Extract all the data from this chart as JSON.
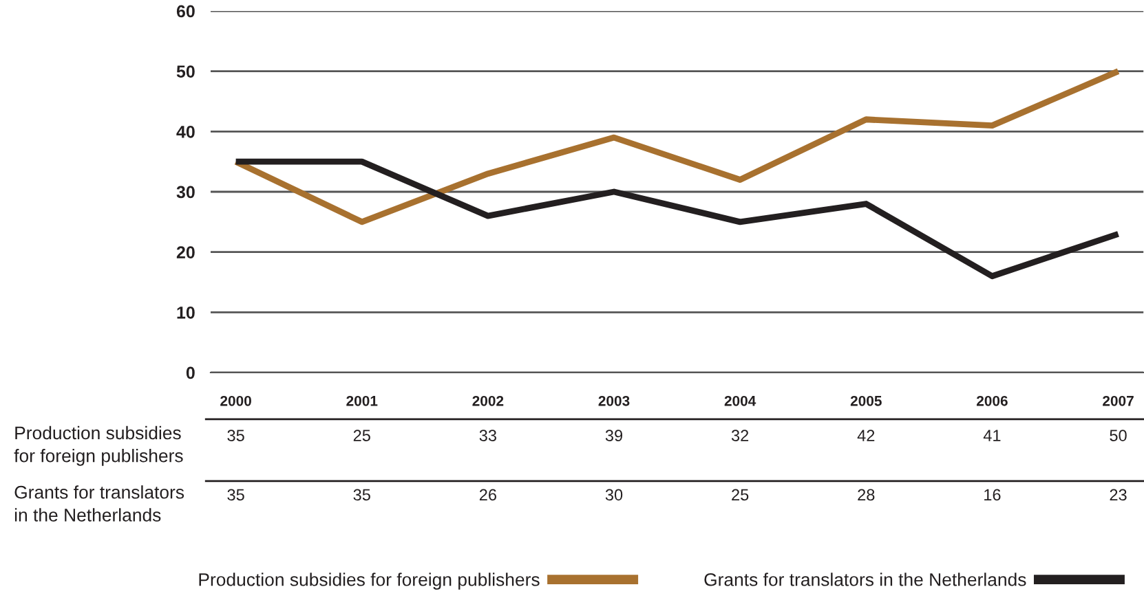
{
  "chart_data": {
    "type": "line",
    "categories": [
      "2000",
      "2001",
      "2002",
      "2003",
      "2004",
      "2005",
      "2006",
      "2007"
    ],
    "series": [
      {
        "name": "Production subsidies for foreign publishers",
        "color": "#a8712f",
        "values": [
          35,
          25,
          33,
          39,
          32,
          42,
          41,
          50
        ]
      },
      {
        "name": "Grants for translators in the Netherlands",
        "color": "#231f20",
        "values": [
          35,
          35,
          26,
          30,
          25,
          28,
          16,
          23
        ]
      }
    ],
    "ylim": [
      0,
      60
    ],
    "yticks": [
      0,
      10,
      20,
      30,
      40,
      50,
      60
    ],
    "grid": "y",
    "legend": "bottom",
    "data_labels": true
  }
}
